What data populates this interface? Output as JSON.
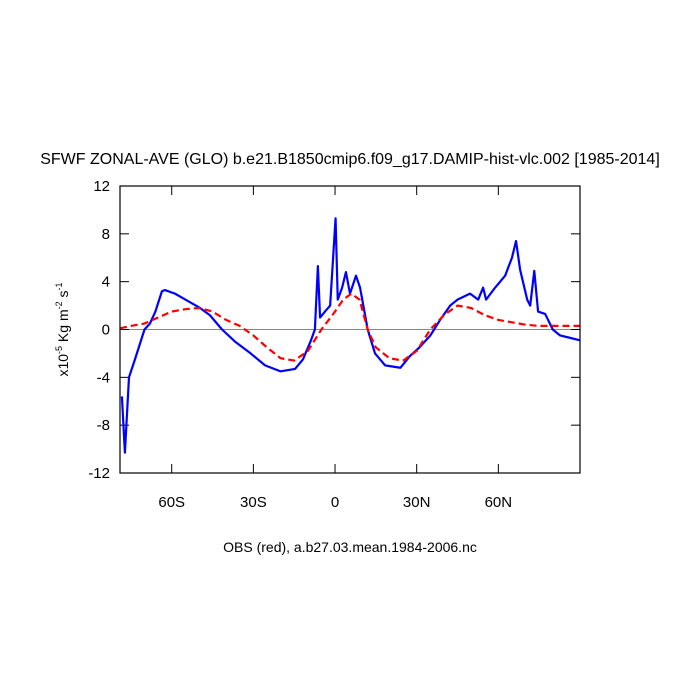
{
  "chart_data": {
    "type": "line",
    "title": "SFWF ZONAL-AVE (GLO) b.e21.B1850cmip6.f09_g17.DAMIP-hist-vlc.002 [1985-2014]",
    "ylabel": [
      "x10",
      "-5",
      " Kg m",
      "-2",
      " s",
      "-1"
    ],
    "footnote": "OBS (red), a.b27.03.mean.1984-2006.nc",
    "xlim": [
      -79,
      90
    ],
    "xticks": [
      {
        "value": -60,
        "label": "60S"
      },
      {
        "value": -30,
        "label": "30S"
      },
      0,
      {
        "value": 30,
        "label": "30N"
      },
      {
        "value": 60,
        "label": "60N"
      }
    ],
    "ylim": [
      -12,
      12
    ],
    "yticks": [
      -12,
      -8,
      -4,
      0,
      4,
      8,
      12
    ],
    "zero_line": true,
    "series": [
      {
        "color": "#0000ff",
        "dash": false,
        "x": [
          -78.3,
          -77.2,
          -75.7,
          -73.5,
          -70,
          -68,
          -66,
          -63.6,
          -62.5,
          -58.8,
          -55,
          -49.6,
          -46,
          -41.5,
          -36.8,
          -31,
          -25.7,
          -20,
          -14.7,
          -11.8,
          -9,
          -7.4,
          -6.3,
          -5.5,
          -3.7,
          -1.8,
          0.2,
          1,
          2.6,
          4,
          5.5,
          7.7,
          9.2,
          12,
          14.7,
          18.4,
          24,
          27.6,
          31,
          35,
          38.6,
          42.3,
          45,
          49.6,
          52.6,
          54.4,
          55.5,
          58.8,
          62.5,
          65,
          66.5,
          68,
          70.6,
          71.7,
          73.2,
          74.6,
          77.2,
          80,
          82.7,
          86.4,
          90
        ],
        "values": [
          -5.6,
          -10.3,
          -4,
          -2.5,
          0,
          0.5,
          1.5,
          3.2,
          3.3,
          3.0,
          2.5,
          1.8,
          1.2,
          0,
          -1,
          -2,
          -3,
          -3.5,
          -3.3,
          -2.5,
          -1,
          0,
          5.3,
          1,
          1.5,
          2,
          9.3,
          2.5,
          3.5,
          4.8,
          3.0,
          4.5,
          3.5,
          0,
          -2,
          -3,
          -3.2,
          -2.2,
          -1.5,
          -0.5,
          0.8,
          2,
          2.5,
          3,
          2.5,
          3.5,
          2.5,
          3.5,
          4.5,
          6,
          7.4,
          5,
          2.5,
          2,
          4.9,
          1.5,
          1.3,
          0,
          -0.5,
          -0.7,
          -0.9
        ]
      },
      {
        "color": "#ff0000",
        "dash": true,
        "x": [
          -79,
          -75,
          -70,
          -65,
          -60,
          -55,
          -50,
          -45,
          -40,
          -35,
          -30,
          -25,
          -20,
          -15,
          -10,
          -5,
          0,
          3,
          6,
          9,
          12,
          15,
          20,
          25,
          30,
          35,
          40,
          45,
          50,
          55,
          60,
          65,
          70,
          75,
          80,
          85,
          90
        ],
        "values": [
          0.1,
          0.3,
          0.5,
          1.0,
          1.5,
          1.7,
          1.8,
          1.5,
          0.8,
          0.3,
          -0.5,
          -1.5,
          -2.4,
          -2.6,
          -1.8,
          0,
          1.5,
          2.5,
          3.0,
          2.5,
          0,
          -1.5,
          -2.4,
          -2.6,
          -1.8,
          0,
          1.2,
          2.0,
          1.8,
          1.2,
          0.8,
          0.6,
          0.4,
          0.3,
          0.3,
          0.3,
          0.3
        ]
      }
    ]
  }
}
